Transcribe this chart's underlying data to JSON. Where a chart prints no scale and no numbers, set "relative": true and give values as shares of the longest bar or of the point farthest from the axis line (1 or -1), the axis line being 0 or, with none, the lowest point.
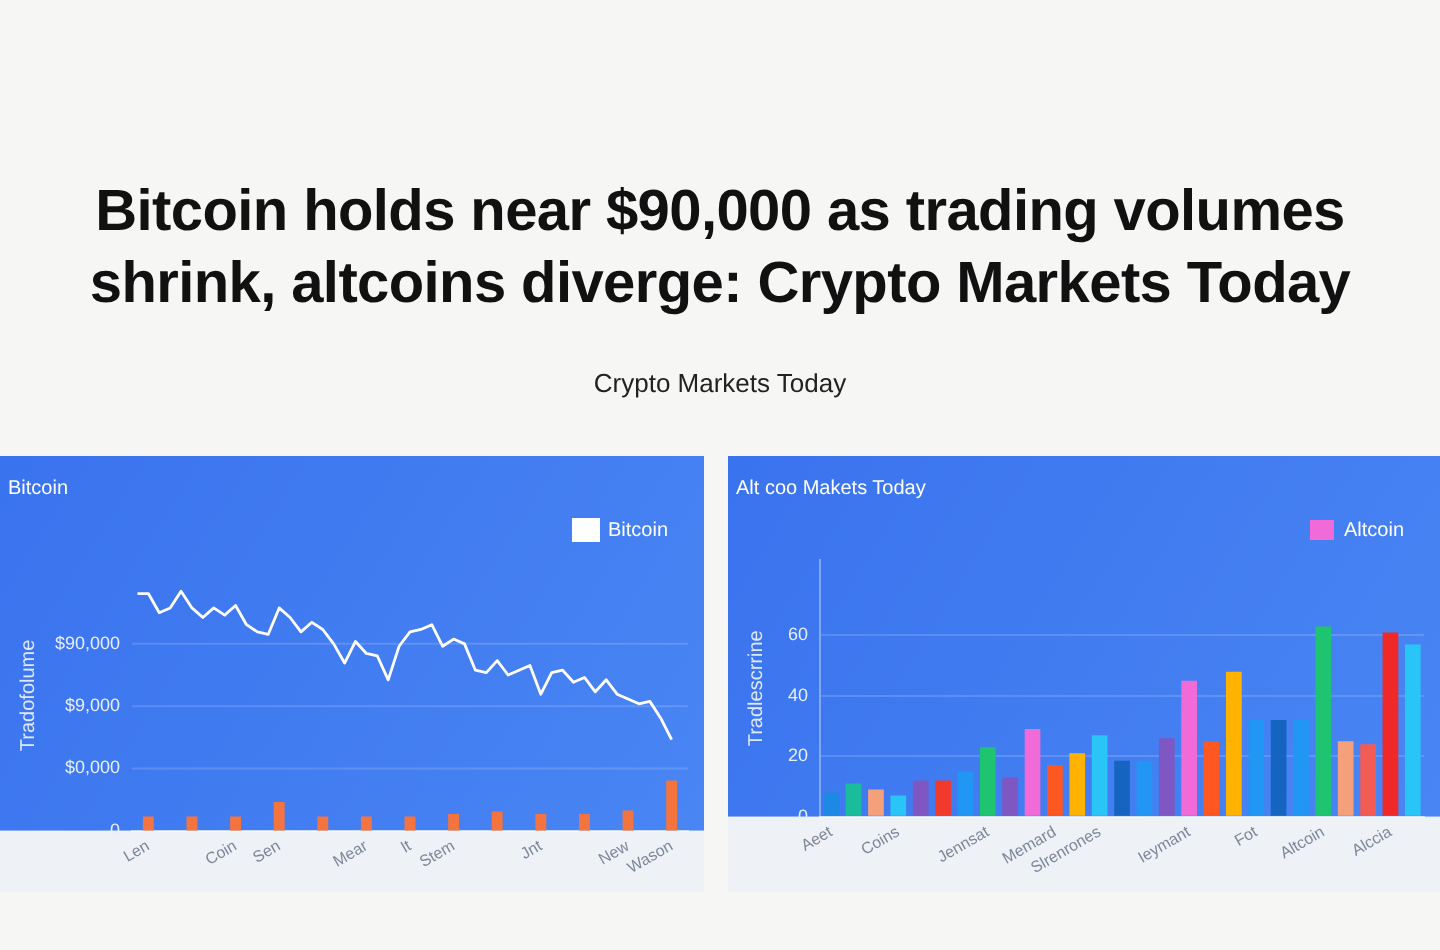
{
  "chart_data": [
    {
      "type": "bar",
      "title": "Bitcoin",
      "ylabel": "Tradofolume",
      "relative": true,
      "annotations": [
        "Bitcoin holds near $90,000 as trading volumes shrink, altcoins diverge: Crypto Markets Today",
        "Crypto Markets Today",
        "0",
        "$0,000",
        "$9,000",
        "$90,000"
      ],
      "categories": [
        null,
        "Len",
        null,
        null,
        null,
        null,
        null,
        null,
        null,
        "Coin",
        null,
        null,
        null,
        "Sen",
        null,
        null,
        null,
        null,
        null,
        null,
        null,
        "Mear",
        null,
        null,
        null,
        "lt",
        null,
        null,
        null,
        "Stem",
        null,
        null,
        null,
        null,
        null,
        null,
        null,
        "Jnt",
        null,
        null,
        null,
        null,
        null,
        null,
        null,
        "New",
        null,
        null,
        null,
        "Wason",
        null
      ],
      "grid": "y",
      "legend": "top right",
      "series": [
        {
          "color": "#f4743f",
          "values": [
            null,
            0.06,
            null,
            null,
            null,
            0.06,
            null,
            null,
            null,
            0.06,
            null,
            null,
            null,
            0.12,
            null,
            null,
            null,
            0.06,
            null,
            null,
            null,
            0.06,
            null,
            null,
            null,
            0.06,
            null,
            null,
            null,
            0.07,
            null,
            null,
            null,
            0.08,
            null,
            null,
            null,
            0.07,
            null,
            null,
            null,
            0.07,
            null,
            null,
            null,
            0.085,
            null,
            null,
            null,
            0.21,
            null
          ]
        },
        {
          "type": "line",
          "name": "Bitcoin",
          "color": "#ffffff",
          "values": [
            0.99,
            0.99,
            0.91,
            0.93,
            1.0,
            0.93,
            0.89,
            0.93,
            0.9,
            0.94,
            0.86,
            0.83,
            0.82,
            0.93,
            0.89,
            0.83,
            0.87,
            0.84,
            0.78,
            0.7,
            0.79,
            0.74,
            0.73,
            0.63,
            0.77,
            0.83,
            0.84,
            0.86,
            0.77,
            0.8,
            0.78,
            0.67,
            0.66,
            0.71,
            0.65,
            0.67,
            0.69,
            0.57,
            0.66,
            0.67,
            0.62,
            0.64,
            0.58,
            0.63,
            0.57,
            0.55,
            0.53,
            0.54,
            0.47,
            0.38,
            null
          ]
        }
      ]
    },
    {
      "type": "bar",
      "title": "Alt coo Makets Today",
      "ylabel": "Tradlescrrine",
      "categories": [
        "Aeet",
        null,
        null,
        "Coins",
        null,
        null,
        null,
        "Jennsat",
        null,
        null,
        "Memard",
        null,
        "Slrenrones",
        null,
        null,
        null,
        "Ieymant",
        null,
        null,
        "Fot",
        null,
        null,
        "Altcoin",
        null,
        null,
        "Alccia",
        null
      ],
      "ylim": [
        0,
        85
      ],
      "yticks": [
        0,
        20,
        40,
        60
      ],
      "grid": "y",
      "legend": "top right",
      "series": [
        {
          "name": "Altcoin",
          "color": "#f06bd8",
          "colors": [
            "#1e88e5",
            "#1abc9c",
            "#f4a07a",
            "#29c5f6",
            "#7e57c2",
            "#f03a2e",
            "#2196f3",
            "#1ec46f",
            "#7e57c2",
            "#f06bd8",
            "#ff5722",
            "#ffb300",
            "#29c5f6",
            "#1565c0",
            "#2196f3",
            "#7e57c2",
            "#f06bd8",
            "#ff5722",
            "#ffb300",
            "#2196f3",
            "#1565c0",
            "#2196f3",
            "#1ec46f",
            "#f4a07a",
            "#f25c54",
            "#f02828",
            "#29c5f6"
          ],
          "values": [
            8,
            11,
            9,
            7,
            12,
            12,
            15,
            23,
            13,
            29,
            17,
            21,
            27,
            18.5,
            18.5,
            26,
            45,
            25,
            48,
            32,
            32,
            32,
            63,
            25,
            24,
            61,
            57
          ]
        }
      ]
    }
  ]
}
